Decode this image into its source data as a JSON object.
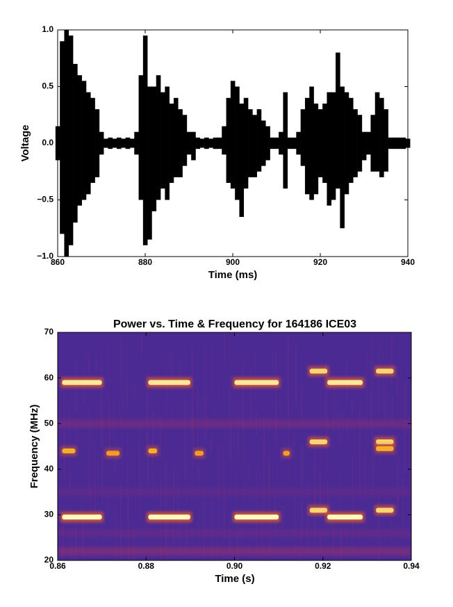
{
  "chart_data": [
    {
      "type": "range",
      "xlabel": "Time (ms)",
      "ylabel": "Voltage",
      "xlim": [
        860,
        940
      ],
      "ylim": [
        -1,
        1
      ],
      "xticks": [
        860,
        880,
        900,
        920,
        940
      ],
      "yticks": [
        {
          "value": -1,
          "label": "−1.0"
        },
        {
          "value": -0.5,
          "label": "−0.5"
        },
        {
          "value": 0,
          "label": "0.0"
        },
        {
          "value": 0.5,
          "label": "0.5"
        },
        {
          "value": 1,
          "label": "1.0"
        }
      ],
      "x": [
        860,
        861,
        862,
        863,
        864,
        865,
        866,
        867,
        868,
        869,
        870,
        871,
        872,
        873,
        874,
        875,
        876,
        877,
        878,
        879,
        880,
        881,
        882,
        883,
        884,
        885,
        886,
        887,
        888,
        889,
        890,
        891,
        892,
        893,
        894,
        895,
        896,
        897,
        898,
        899,
        900,
        901,
        902,
        903,
        904,
        905,
        906,
        907,
        908,
        909,
        910,
        911,
        912,
        913,
        914,
        915,
        916,
        917,
        918,
        919,
        920,
        921,
        922,
        923,
        924,
        925,
        926,
        927,
        928,
        929,
        930,
        931,
        932,
        933,
        934,
        935,
        936,
        937,
        938,
        939,
        940
      ],
      "series": [
        {
          "color": "#000000",
          "values": [
            0.15,
            0.9,
            1.0,
            0.95,
            0.7,
            0.6,
            0.55,
            0.45,
            0.4,
            0.3,
            0.1,
            0.04,
            0.05,
            0.04,
            0.05,
            0.04,
            0.05,
            0.04,
            0.1,
            0.6,
            0.95,
            0.5,
            0.5,
            0.6,
            0.45,
            0.5,
            0.35,
            0.4,
            0.3,
            0.25,
            0.1,
            0.1,
            0.05,
            0.04,
            0.05,
            0.04,
            0.05,
            0.05,
            0.15,
            0.4,
            0.55,
            0.5,
            0.35,
            0.4,
            0.3,
            0.25,
            0.3,
            0.2,
            0.15,
            0.05,
            0.05,
            0.1,
            0.45,
            0.05,
            0.05,
            0.1,
            0.3,
            0.4,
            0.5,
            0.35,
            0.3,
            0.35,
            0.45,
            0.45,
            0.8,
            0.5,
            0.45,
            0.4,
            0.3,
            0.25,
            0.1,
            0.1,
            0.25,
            0.45,
            0.4,
            0.3,
            0.05,
            0.05,
            0.05,
            0.05,
            0.04
          ]
        },
        {
          "color": "#000000",
          "values": [
            -0.15,
            -0.8,
            -1.0,
            -0.9,
            -0.7,
            -0.55,
            -0.5,
            -0.45,
            -0.35,
            -0.3,
            -0.1,
            -0.04,
            -0.05,
            -0.04,
            -0.05,
            -0.04,
            -0.05,
            -0.04,
            -0.1,
            -0.5,
            -0.9,
            -0.85,
            -0.6,
            -0.5,
            -0.4,
            -0.5,
            -0.35,
            -0.3,
            -0.3,
            -0.2,
            -0.1,
            -0.15,
            -0.05,
            -0.04,
            -0.05,
            -0.04,
            -0.05,
            -0.05,
            -0.1,
            -0.35,
            -0.4,
            -0.5,
            -0.65,
            -0.4,
            -0.3,
            -0.3,
            -0.25,
            -0.2,
            -0.15,
            -0.05,
            -0.05,
            -0.1,
            -0.4,
            -0.05,
            -0.05,
            -0.1,
            -0.2,
            -0.45,
            -0.5,
            -0.45,
            -0.3,
            -0.35,
            -0.55,
            -0.5,
            -0.4,
            -0.75,
            -0.45,
            -0.35,
            -0.3,
            -0.25,
            -0.15,
            -0.1,
            -0.25,
            -0.25,
            -0.3,
            -0.25,
            -0.05,
            -0.05,
            -0.05,
            -0.05,
            -0.04
          ]
        }
      ]
    },
    {
      "type": "spectrogram",
      "title": "Power vs. Time & Frequency for 164186 ICE03",
      "xlabel": "Time (s)",
      "ylabel": "Frequency (MHz)",
      "xlim": [
        0.86,
        0.94
      ],
      "ylim": [
        20,
        70
      ],
      "xticks": [
        0.86,
        0.88,
        {
          "value": 0.9,
          "label": "0.90"
        },
        0.92,
        0.94
      ],
      "yticks": [
        20,
        30,
        40,
        50,
        60,
        70
      ],
      "background": "#4b2a94",
      "segments": [
        {
          "x": [
            0.861,
            0.87
          ],
          "freq": 59,
          "level": 0.9
        },
        {
          "x": [
            0.861,
            0.87
          ],
          "freq": 29.5,
          "level": 1.0
        },
        {
          "x": [
            0.861,
            0.864
          ],
          "freq": 44,
          "level": 0.6
        },
        {
          "x": [
            0.871,
            0.874
          ],
          "freq": 43.5,
          "level": 0.5
        },
        {
          "x": [
            0.8805,
            0.89
          ],
          "freq": 59,
          "level": 0.9
        },
        {
          "x": [
            0.8805,
            0.89
          ],
          "freq": 29.5,
          "level": 1.0
        },
        {
          "x": [
            0.8805,
            0.8825
          ],
          "freq": 44,
          "level": 0.6
        },
        {
          "x": [
            0.891,
            0.893
          ],
          "freq": 43.5,
          "level": 0.5
        },
        {
          "x": [
            0.9,
            0.91
          ],
          "freq": 59,
          "level": 0.9
        },
        {
          "x": [
            0.9,
            0.91
          ],
          "freq": 29.5,
          "level": 1.0
        },
        {
          "x": [
            0.911,
            0.9125
          ],
          "freq": 43.5,
          "level": 0.5
        },
        {
          "x": [
            0.917,
            0.921
          ],
          "freq": 61.5,
          "level": 0.8
        },
        {
          "x": [
            0.917,
            0.921
          ],
          "freq": 46,
          "level": 0.8
        },
        {
          "x": [
            0.917,
            0.921
          ],
          "freq": 31,
          "level": 0.8
        },
        {
          "x": [
            0.921,
            0.929
          ],
          "freq": 59,
          "level": 0.9
        },
        {
          "x": [
            0.921,
            0.929
          ],
          "freq": 29.5,
          "level": 1.0
        },
        {
          "x": [
            0.932,
            0.936
          ],
          "freq": 61.5,
          "level": 0.8
        },
        {
          "x": [
            0.932,
            0.936
          ],
          "freq": 46,
          "level": 0.8
        },
        {
          "x": [
            0.932,
            0.936
          ],
          "freq": 44.5,
          "level": 0.6
        },
        {
          "x": [
            0.932,
            0.936
          ],
          "freq": 31,
          "level": 0.8
        }
      ]
    }
  ]
}
